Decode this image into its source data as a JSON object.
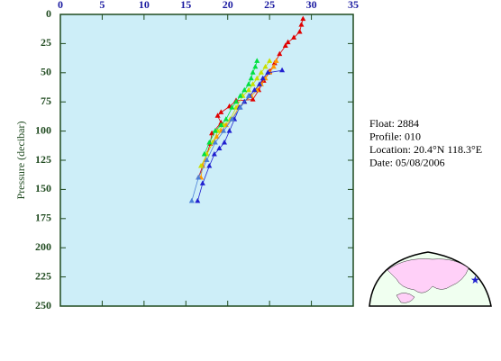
{
  "chart_data": {
    "type": "profile",
    "ylabel": "Pressure (decibar)",
    "xlim": [
      0,
      35
    ],
    "xticks": [
      0,
      5,
      10,
      15,
      20,
      25,
      30,
      35
    ],
    "ylim": [
      0,
      250
    ],
    "yticks": [
      0,
      25,
      50,
      75,
      100,
      125,
      150,
      175,
      200,
      225,
      250
    ],
    "y_inverted": true,
    "series": [
      {
        "color": "#e00000",
        "x": [
          29.0,
          28.8,
          28.6,
          27.9,
          27.2,
          26.9,
          26.2,
          25.6,
          25.0,
          24.3,
          23.7,
          23.0,
          21.0,
          20.2,
          19.2,
          18.8,
          19.2,
          18.1,
          17.9,
          17.5,
          17.0,
          16.5
        ],
        "values": [
          4,
          9,
          15,
          20,
          24,
          27,
          34,
          42,
          49,
          57,
          65,
          73,
          74,
          79,
          84,
          87,
          93,
          102,
          111,
          120,
          130,
          140
        ]
      },
      {
        "color": "#ff9900",
        "x": [
          25.8,
          25.5,
          25.0,
          24.5,
          24.0,
          23.5,
          22.8,
          22.0,
          21.3,
          20.5,
          19.8,
          19.2,
          18.7,
          18.2,
          17.5,
          17.0,
          16.8
        ],
        "values": [
          40,
          45,
          50,
          55,
          60,
          65,
          70,
          75,
          80,
          90,
          95,
          100,
          105,
          110,
          120,
          130,
          140
        ]
      },
      {
        "color": "#c8e000",
        "x": [
          25.0,
          24.5,
          24.0,
          23.5,
          23.0,
          22.5,
          21.8,
          21.0,
          20.3,
          19.5,
          18.8,
          18.2,
          17.5,
          16.8
        ],
        "values": [
          40,
          45,
          50,
          55,
          60,
          65,
          70,
          80,
          90,
          95,
          100,
          110,
          120,
          130
        ]
      },
      {
        "color": "#00e040",
        "x": [
          23.5,
          23.3,
          23.0,
          22.8,
          22.5,
          22.0,
          21.5,
          21.0,
          20.5,
          19.8,
          19.2,
          18.5,
          17.8,
          17.2
        ],
        "values": [
          40,
          45,
          50,
          55,
          60,
          65,
          70,
          75,
          80,
          90,
          95,
          100,
          110,
          120
        ]
      },
      {
        "color": "#2020d0",
        "x": [
          26.5,
          24.8,
          24.2,
          23.8,
          23.2,
          22.6,
          22.0,
          21.4,
          20.8,
          20.2,
          19.6,
          19.0,
          18.4,
          17.8,
          17.0,
          16.4
        ],
        "values": [
          48,
          50,
          55,
          60,
          65,
          70,
          75,
          80,
          90,
          100,
          110,
          115,
          120,
          130,
          145,
          160
        ]
      },
      {
        "color": "#4a7fd8",
        "x": [
          22.5,
          21.5,
          20.5,
          19.5,
          18.5,
          17.5,
          16.5,
          15.7
        ],
        "values": [
          70,
          80,
          90,
          100,
          110,
          125,
          140,
          160
        ]
      }
    ]
  },
  "info": [
    "Float:  2884",
    "Profile:  010",
    "Location:  20.4°N  118.3°E",
    "Date:  05/08/2006"
  ]
}
